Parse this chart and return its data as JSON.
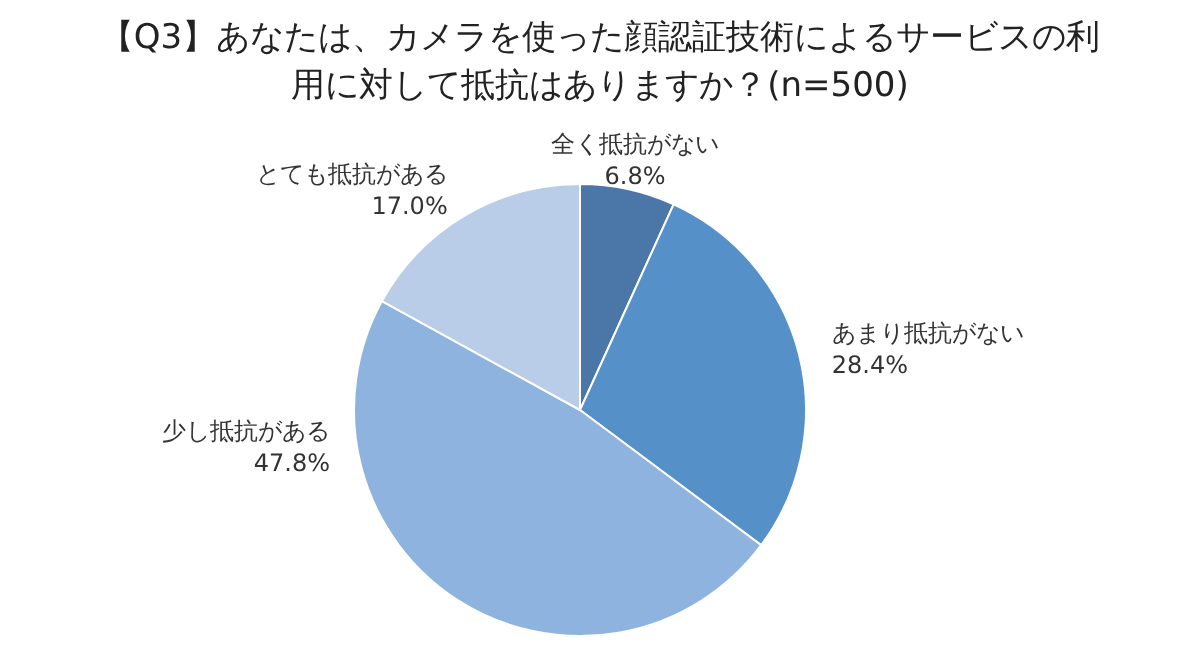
{
  "chart_data": {
    "type": "pie",
    "title": "【Q3】あなたは、カメラを使った顔認証技術によるサービスの利用に対して抵抗はありますか？(n=500)",
    "categories": [
      "全く抵抗がない",
      "あまり抵抗がない",
      "少し抵抗がある",
      "とても抵抗がある"
    ],
    "values": [
      6.8,
      28.4,
      47.8,
      17.0
    ],
    "value_labels": [
      "6.8%",
      "28.4%",
      "47.8%",
      "17.0%"
    ],
    "colors": [
      "#4a76a8",
      "#5590c8",
      "#8db3de",
      "#b9cde8"
    ]
  }
}
